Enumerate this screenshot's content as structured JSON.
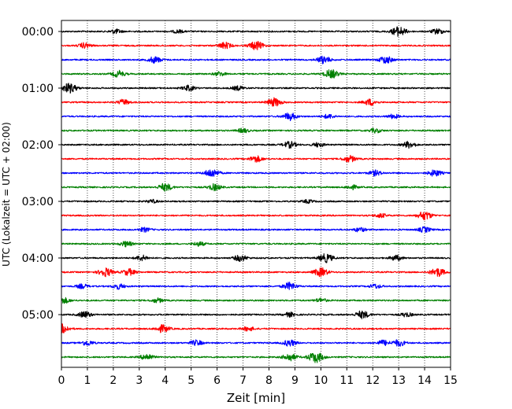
{
  "chart_data": {
    "type": "line",
    "xlabel": "Zeit  [min]",
    "ylabel": "UTC (Lokalzeit = UTC + 02:00)",
    "xlim": [
      0,
      15
    ],
    "x_ticks": [
      "0",
      "1",
      "2",
      "3",
      "4",
      "5",
      "6",
      "7",
      "8",
      "9",
      "10",
      "11",
      "12",
      "13",
      "14",
      "15"
    ],
    "y_tick_labels": [
      "00:00",
      "01:00",
      "02:00",
      "03:00",
      "04:00",
      "05:00"
    ],
    "trace_interval_min": 15,
    "trace_count": 24,
    "trace_colors": [
      "#000000",
      "#ff0000",
      "#0000ff",
      "#008000"
    ],
    "grid": "vertical dotted",
    "traces": [
      {
        "start": "00:00",
        "color": "#000000",
        "bursts": [
          [
            2.1,
            0.4
          ],
          [
            4.5,
            0.3
          ],
          [
            13.0,
            0.9
          ],
          [
            14.5,
            0.5
          ]
        ]
      },
      {
        "start": "00:15",
        "color": "#ff0000",
        "bursts": [
          [
            0.9,
            0.5
          ],
          [
            6.3,
            0.6
          ],
          [
            7.5,
            0.8
          ]
        ]
      },
      {
        "start": "00:30",
        "color": "#0000ff",
        "bursts": [
          [
            3.6,
            0.6
          ],
          [
            10.1,
            0.7
          ],
          [
            12.5,
            0.7
          ]
        ]
      },
      {
        "start": "00:45",
        "color": "#008000",
        "bursts": [
          [
            2.2,
            0.6
          ],
          [
            6.1,
            0.4
          ],
          [
            10.4,
            0.8
          ]
        ]
      },
      {
        "start": "01:00",
        "color": "#000000",
        "bursts": [
          [
            0.3,
            0.9
          ],
          [
            4.9,
            0.5
          ],
          [
            6.8,
            0.4
          ]
        ]
      },
      {
        "start": "01:15",
        "color": "#ff0000",
        "bursts": [
          [
            2.4,
            0.5
          ],
          [
            8.2,
            0.8
          ],
          [
            11.9,
            0.6
          ]
        ]
      },
      {
        "start": "01:30",
        "color": "#0000ff",
        "bursts": [
          [
            8.8,
            0.7
          ],
          [
            10.3,
            0.4
          ],
          [
            12.8,
            0.4
          ]
        ]
      },
      {
        "start": "01:45",
        "color": "#008000",
        "bursts": [
          [
            7.0,
            0.4
          ],
          [
            12.1,
            0.4
          ]
        ]
      },
      {
        "start": "02:00",
        "color": "#000000",
        "bursts": [
          [
            8.8,
            0.6
          ],
          [
            9.9,
            0.4
          ],
          [
            13.4,
            0.6
          ]
        ]
      },
      {
        "start": "02:15",
        "color": "#ff0000",
        "bursts": [
          [
            7.5,
            0.6
          ],
          [
            11.1,
            0.6
          ]
        ]
      },
      {
        "start": "02:30",
        "color": "#0000ff",
        "bursts": [
          [
            5.8,
            0.8
          ],
          [
            12.1,
            0.5
          ],
          [
            14.4,
            0.6
          ]
        ]
      },
      {
        "start": "02:45",
        "color": "#008000",
        "bursts": [
          [
            4.0,
            0.7
          ],
          [
            5.9,
            0.6
          ],
          [
            11.2,
            0.4
          ]
        ]
      },
      {
        "start": "03:00",
        "color": "#000000",
        "bursts": [
          [
            3.5,
            0.3
          ],
          [
            9.5,
            0.3
          ]
        ]
      },
      {
        "start": "03:15",
        "color": "#ff0000",
        "bursts": [
          [
            12.3,
            0.4
          ],
          [
            14.0,
            0.8
          ]
        ]
      },
      {
        "start": "03:30",
        "color": "#0000ff",
        "bursts": [
          [
            3.2,
            0.4
          ],
          [
            11.5,
            0.4
          ],
          [
            14.0,
            0.5
          ]
        ]
      },
      {
        "start": "03:45",
        "color": "#008000",
        "bursts": [
          [
            2.5,
            0.5
          ],
          [
            5.3,
            0.4
          ]
        ]
      },
      {
        "start": "04:00",
        "color": "#000000",
        "bursts": [
          [
            3.1,
            0.5
          ],
          [
            6.9,
            0.6
          ],
          [
            10.2,
            0.8
          ],
          [
            12.9,
            0.5
          ]
        ]
      },
      {
        "start": "04:15",
        "color": "#ff0000",
        "bursts": [
          [
            1.7,
            0.8
          ],
          [
            2.6,
            0.6
          ],
          [
            10.0,
            0.8
          ],
          [
            14.5,
            0.8
          ]
        ]
      },
      {
        "start": "04:30",
        "color": "#0000ff",
        "bursts": [
          [
            0.8,
            0.4
          ],
          [
            2.2,
            0.5
          ],
          [
            8.8,
            0.7
          ],
          [
            12.1,
            0.4
          ]
        ]
      },
      {
        "start": "04:45",
        "color": "#008000",
        "bursts": [
          [
            0.1,
            0.5
          ],
          [
            3.7,
            0.4
          ],
          [
            10.0,
            0.4
          ]
        ]
      },
      {
        "start": "05:00",
        "color": "#000000",
        "bursts": [
          [
            0.9,
            0.6
          ],
          [
            8.8,
            0.4
          ],
          [
            11.6,
            0.7
          ],
          [
            13.3,
            0.4
          ]
        ]
      },
      {
        "start": "05:15",
        "color": "#ff0000",
        "bursts": [
          [
            0.0,
            0.9
          ],
          [
            3.9,
            0.7
          ],
          [
            7.2,
            0.4
          ]
        ]
      },
      {
        "start": "05:30",
        "color": "#0000ff",
        "bursts": [
          [
            1.0,
            0.5
          ],
          [
            5.2,
            0.5
          ],
          [
            8.8,
            0.6
          ],
          [
            12.4,
            0.5
          ],
          [
            13.0,
            0.6
          ]
        ]
      },
      {
        "start": "05:45",
        "color": "#008000",
        "bursts": [
          [
            3.3,
            0.6
          ],
          [
            8.8,
            0.7
          ],
          [
            9.8,
            1.0
          ]
        ]
      }
    ]
  }
}
